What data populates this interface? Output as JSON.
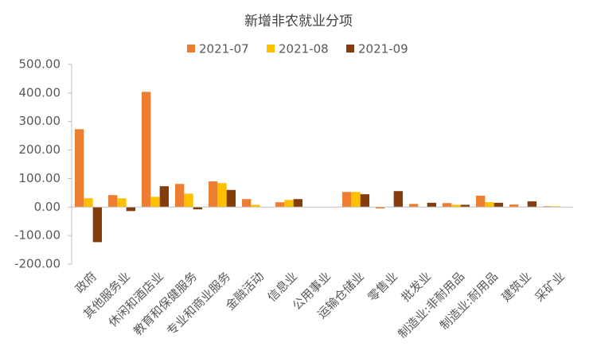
{
  "chart_data": {
    "type": "bar",
    "title": "新增非农就业分项",
    "categories": [
      "政府",
      "其他服务业",
      "休闲和酒店业",
      "教育和保健服务",
      "专业和商业服务",
      "金融活动",
      "信息业",
      "公用事业",
      "运输仓储业",
      "零售业",
      "批发业",
      "制造业:非耐用品",
      "制造业:耐用品",
      "建筑业",
      "采矿业"
    ],
    "series": [
      {
        "name": "2021-07",
        "color": "#ED7D31",
        "values": [
          273,
          42,
          404,
          81,
          90,
          28,
          17,
          0,
          53,
          -5,
          11,
          14,
          40,
          9,
          3
        ]
      },
      {
        "name": "2021-08",
        "color": "#FFC000",
        "values": [
          31,
          31,
          36,
          47,
          84,
          8,
          25,
          0,
          53,
          0,
          0,
          8,
          17,
          0,
          3
        ]
      },
      {
        "name": "2021-09",
        "color": "#843C0C",
        "values": [
          -123,
          -14,
          73,
          -8,
          60,
          0,
          28,
          0,
          45,
          56,
          15,
          8,
          15,
          20,
          0
        ]
      }
    ],
    "ylim": [
      -200,
      500
    ],
    "yticks": [
      {
        "value": -200,
        "label": "-200.00"
      },
      {
        "value": -100,
        "label": "-100.00"
      },
      {
        "value": 0,
        "label": "0.00"
      },
      {
        "value": 100,
        "label": "100.00"
      },
      {
        "value": 200,
        "label": "200.00"
      },
      {
        "value": 300,
        "label": "300.00"
      },
      {
        "value": 400,
        "label": "400.00"
      },
      {
        "value": 500,
        "label": "500.00"
      }
    ],
    "legend": "top"
  }
}
